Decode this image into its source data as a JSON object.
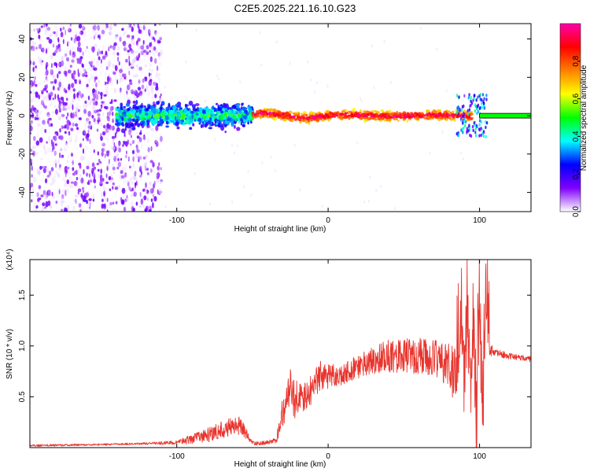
{
  "figure": {
    "title": "C2E5.2025.221.16.10.G23",
    "colors": {
      "series": "#e8352e",
      "frame": "#000000",
      "background": "#ffffff"
    }
  },
  "chart_data": [
    {
      "type": "heatmap",
      "xlabel": "Height of straight line (km)",
      "ylabel": "Frequency (Hz)",
      "xlim": [
        -197,
        134
      ],
      "ylim": [
        -50,
        48
      ],
      "xticks": [
        -100,
        0,
        100
      ],
      "yticks": [
        -40,
        -20,
        0,
        20,
        40
      ],
      "colorbar": {
        "label": "Normalized spectral amplitude",
        "range": [
          0,
          1
        ],
        "ticks": [
          0.0,
          0.2,
          0.4,
          0.6,
          0.8
        ],
        "tick_labels": [
          "0.0",
          "0.2",
          "0.4",
          "0.6",
          "0.8"
        ],
        "colormap": [
          "#ffffff",
          "#8000ff",
          "#0000ff",
          "#00ffff",
          "#00ff00",
          "#ffff00",
          "#ff8000",
          "#ff0000",
          "#ff00aa"
        ]
      },
      "regions": [
        {
          "x": [
            -197,
            -110
          ],
          "freq": [
            -50,
            48
          ],
          "amplitude": [
            0.0,
            0.15
          ],
          "pattern": "scattered noise"
        },
        {
          "x": [
            -140,
            -50
          ],
          "freq": [
            -8,
            8
          ],
          "amplitude": [
            0.1,
            0.5
          ],
          "pattern": "broad band"
        },
        {
          "x": [
            -50,
            95
          ],
          "freq": [
            -3,
            3
          ],
          "amplitude": [
            0.6,
            1.0
          ],
          "pattern": "narrow line near 0 Hz"
        },
        {
          "x": [
            100,
            134
          ],
          "freq": [
            -1,
            1
          ],
          "amplitude": [
            0.5,
            0.5
          ],
          "pattern": "flat line at 0 Hz"
        }
      ]
    },
    {
      "type": "line",
      "ylabel": "SNR (10 * v/v)",
      "xlabel": "Height of straight line (km)",
      "y_multiplier": "(x10⁴)",
      "xlim": [
        -197,
        134
      ],
      "ylim": [
        0,
        1.85
      ],
      "xticks": [
        -100,
        0,
        100
      ],
      "yticks": [
        0.5,
        1.0,
        1.5
      ],
      "ytick_labels": [
        "0.5",
        "1.0",
        "1.5"
      ],
      "series": [
        {
          "color": "#e8352e",
          "x": [
            -197,
            -150,
            -120,
            -100,
            -85,
            -75,
            -65,
            -58,
            -52,
            -48,
            -40,
            -34,
            -32,
            -28,
            -25,
            -22,
            -18,
            -15,
            -10,
            -5,
            0,
            10,
            20,
            30,
            40,
            50,
            60,
            70,
            75,
            80,
            85,
            88,
            90,
            92,
            94,
            96,
            98,
            100,
            102,
            104,
            106,
            110,
            120,
            134
          ],
          "y": [
            0.02,
            0.03,
            0.04,
            0.05,
            0.1,
            0.15,
            0.2,
            0.22,
            0.08,
            0.04,
            0.05,
            0.07,
            0.25,
            0.45,
            0.6,
            0.45,
            0.55,
            0.48,
            0.6,
            0.7,
            0.7,
            0.72,
            0.8,
            0.86,
            0.9,
            0.92,
            0.9,
            0.88,
            0.85,
            0.8,
            0.7,
            1.2,
            0.6,
            1.4,
            0.5,
            1.3,
            0.2,
            1.55,
            0.3,
            1.6,
            1.0,
            0.93,
            0.9,
            0.87
          ],
          "noise": [
            0.01,
            0.01,
            0.01,
            0.02,
            0.06,
            0.08,
            0.09,
            0.1,
            0.04,
            0.02,
            0.02,
            0.03,
            0.12,
            0.18,
            0.2,
            0.18,
            0.18,
            0.15,
            0.15,
            0.15,
            0.12,
            0.1,
            0.12,
            0.14,
            0.16,
            0.18,
            0.18,
            0.18,
            0.2,
            0.25,
            0.3,
            0.4,
            0.4,
            0.45,
            0.45,
            0.45,
            0.45,
            0.5,
            0.5,
            0.4,
            0.1,
            0.04,
            0.03,
            0.03
          ]
        }
      ]
    }
  ]
}
